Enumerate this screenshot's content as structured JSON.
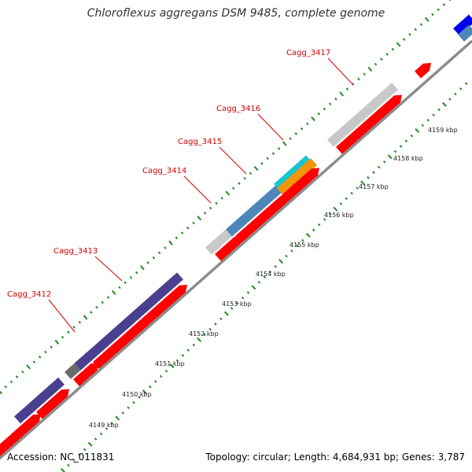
{
  "title": "Chloroflexus aggregans DSM 9485, complete genome",
  "footer": {
    "accession": "Accession: NC_011831",
    "summary": "Topology: circular; Length: 4,684,931 bp; Genes: 3,787"
  },
  "colors": {
    "backbone": "#8c8c8c",
    "forward_cds": "#ff0000",
    "reverse_cds": "#4a4090",
    "gene_grey": "#c8c8c8",
    "gene_steelblue": "#4f86b9",
    "gene_cyan": "#18c4d2",
    "gene_orange": "#f0960a",
    "gene_darkgrey": "#6a6a6a",
    "gene_blue": "#0000ee",
    "tick_green": "#1f8a1f",
    "label_red": "#d40000"
  },
  "tick_labels": [
    {
      "key": "t4149",
      "text": "4149 kbp"
    },
    {
      "key": "t4150",
      "text": "4150 kbp"
    },
    {
      "key": "t4151",
      "text": "4151 kbp"
    },
    {
      "key": "t4152",
      "text": "4152 kbp"
    },
    {
      "key": "t4153",
      "text": "4153 kbp"
    },
    {
      "key": "t4154",
      "text": "4154 kbp"
    },
    {
      "key": "t4155",
      "text": "4155 kbp"
    },
    {
      "key": "t4156",
      "text": "4156 kbp"
    },
    {
      "key": "t4157",
      "text": "4157 kbp"
    },
    {
      "key": "t4158",
      "text": "4158 kbp"
    },
    {
      "key": "t4159",
      "text": "4159 kbp"
    }
  ],
  "gene_labels": [
    {
      "key": "g3412",
      "text": "Cagg_3412"
    },
    {
      "key": "g3413",
      "text": "Cagg_3413"
    },
    {
      "key": "g3414",
      "text": "Cagg_3414"
    },
    {
      "key": "g3415",
      "text": "Cagg_3415"
    },
    {
      "key": "g3416",
      "text": "Cagg_3416"
    },
    {
      "key": "g3417",
      "text": "Cagg_3417"
    }
  ]
}
